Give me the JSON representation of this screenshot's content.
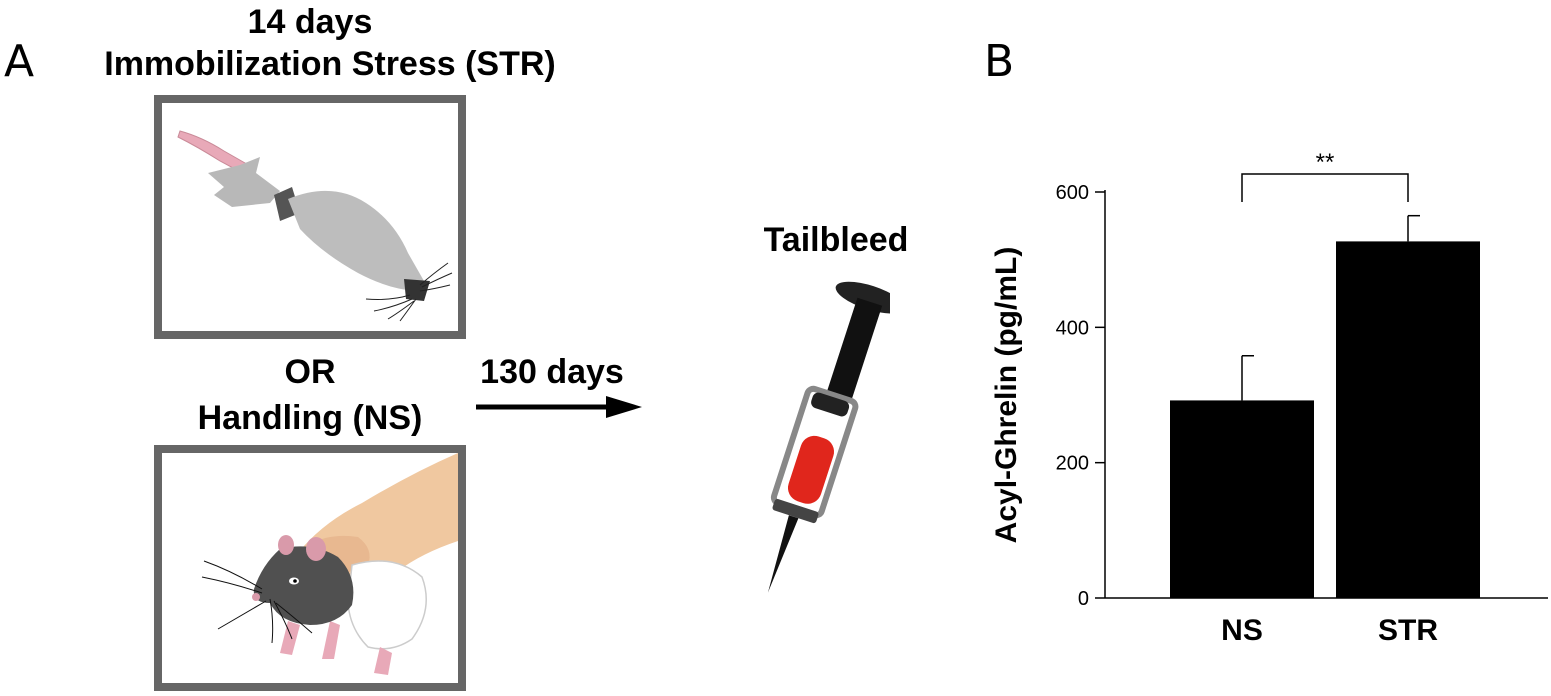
{
  "panel_a": {
    "label": "A",
    "stress_days": "14 days",
    "stress_title": "Immobilization Stress (STR)",
    "or_text": "OR",
    "handling_title": "Handling (NS)",
    "arrow_label": "130 days",
    "procedure_label": "Tailbleed",
    "icons": [
      "restrained-rat-icon",
      "handled-rat-icon",
      "syringe-icon"
    ]
  },
  "panel_b": {
    "label": "B"
  },
  "chart_data": {
    "type": "bar",
    "categories": [
      "NS",
      "STR"
    ],
    "values": [
      292,
      527
    ],
    "error_upper": [
      358,
      565
    ],
    "ylabel": "Acyl-Ghrelin (pg/mL)",
    "xlabel": "",
    "ylim": [
      0,
      600
    ],
    "yticks": [
      0,
      200,
      400,
      600
    ],
    "grid": false,
    "significance": {
      "between": [
        "NS",
        "STR"
      ],
      "label": "**"
    },
    "bar_color": "#000000"
  }
}
